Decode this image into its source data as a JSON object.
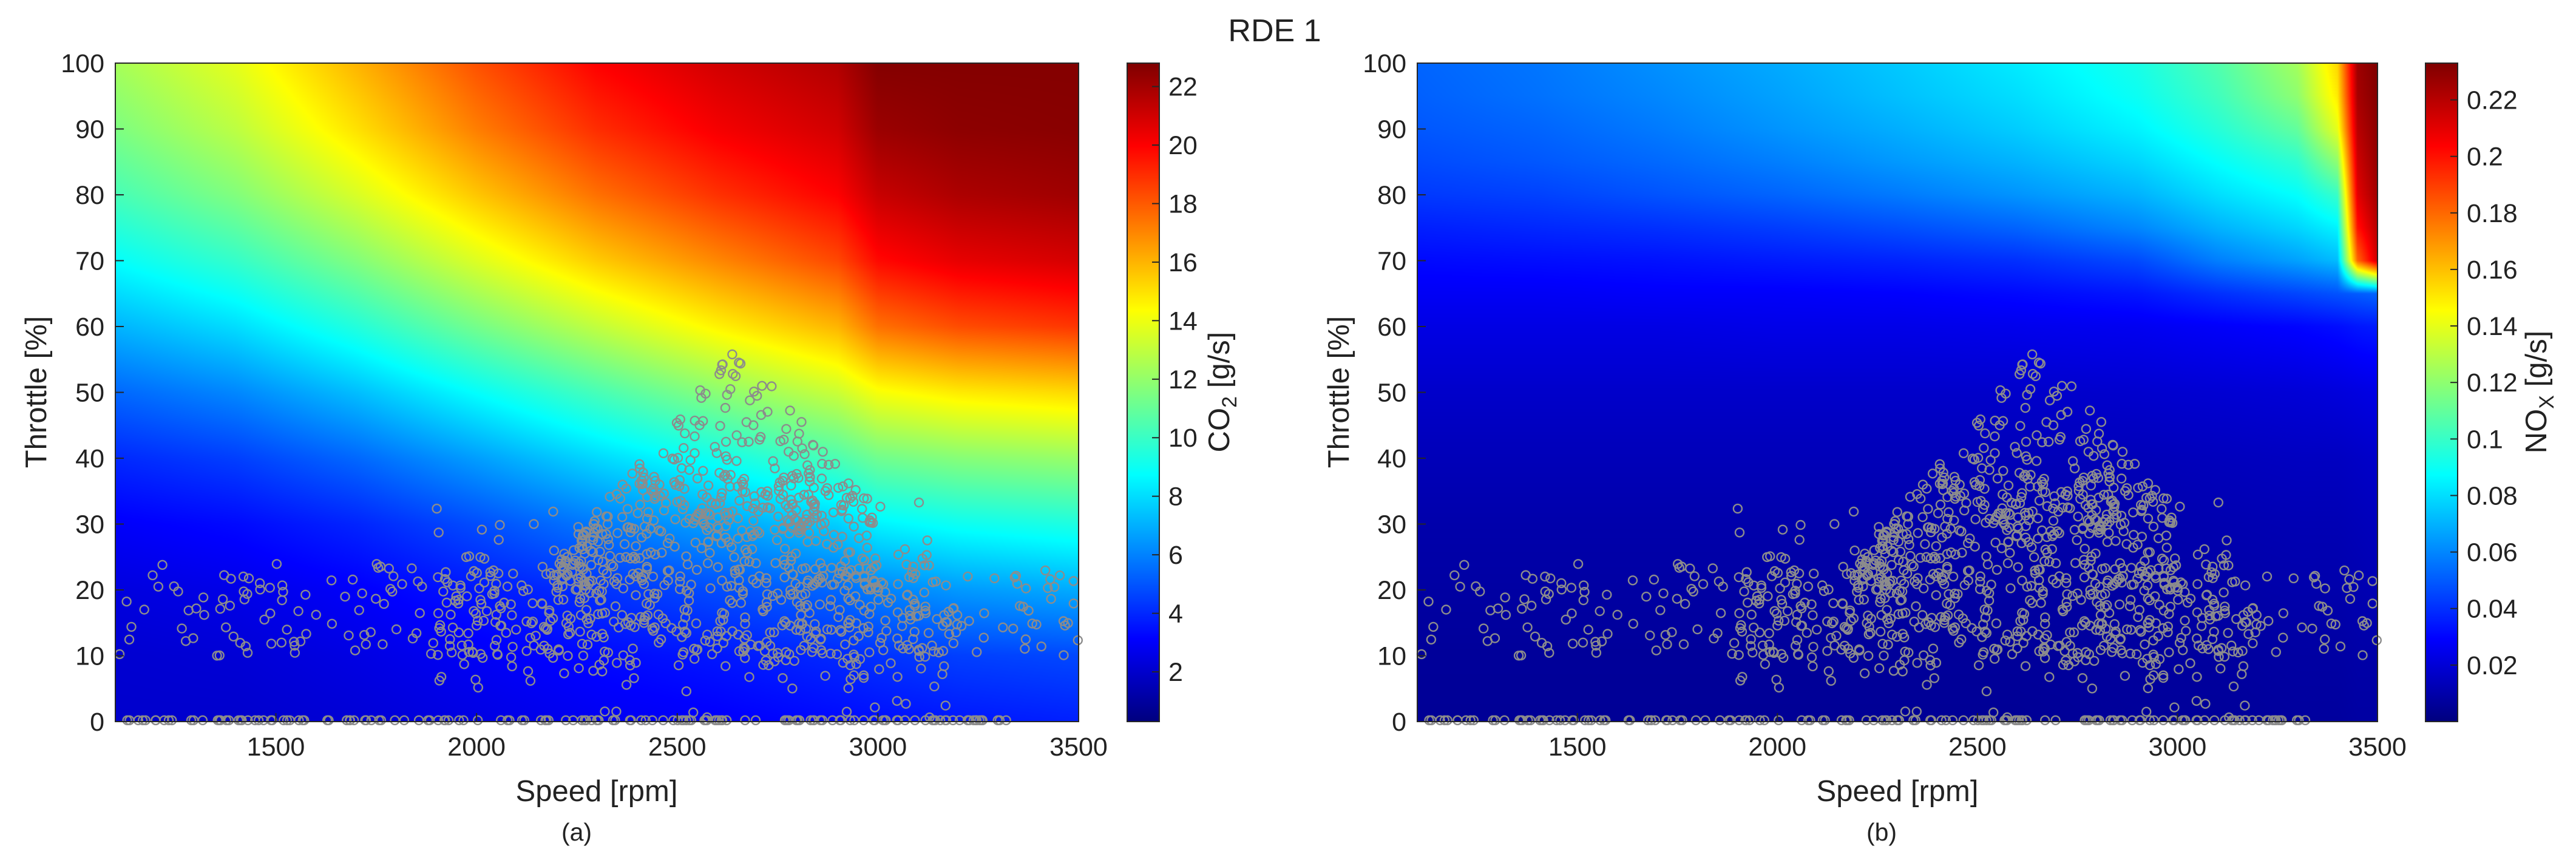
{
  "figure": {
    "title": "RDE 1",
    "colors": {
      "scatter_marker": "#8c8c8c",
      "axis": "#262626"
    },
    "panels": [
      {
        "tag": "(a)",
        "xlabel": "Speed [rpm]",
        "ylabel": "Throttle [%]",
        "colorbar_label": "CO",
        "colorbar_sub": "2",
        "colorbar_unit": " [g/s]"
      },
      {
        "tag": "(b)",
        "xlabel": "Speed [rpm]",
        "ylabel": "Throttle [%]",
        "colorbar_label": "NO",
        "colorbar_sub": "X",
        "colorbar_unit": " [g/s]"
      }
    ]
  },
  "chart_data": [
    {
      "type": "heatmap",
      "title": "",
      "xlabel": "Speed [rpm]",
      "ylabel": "Throttle [%]",
      "xlim": [
        1100,
        3500
      ],
      "ylim": [
        0,
        100
      ],
      "x_ticks": [
        1500,
        2000,
        2500,
        3000,
        3500
      ],
      "y_ticks": [
        0,
        10,
        20,
        30,
        40,
        50,
        60,
        70,
        80,
        90,
        100
      ],
      "colorbar": {
        "label": "CO2 [g/s]",
        "min": 0.3,
        "max": 22.8,
        "ticks": [
          2,
          4,
          6,
          8,
          10,
          12,
          14,
          16,
          18,
          20,
          22
        ],
        "colormap": "jet"
      },
      "surface": {
        "x": [
          1100,
          1400,
          1700,
          2000,
          2300,
          2600,
          2900,
          3000,
          3200,
          3500
        ],
        "y": [
          0,
          10,
          20,
          30,
          40,
          50,
          60,
          70,
          80,
          90,
          100
        ],
        "z": [
          [
            2.0,
            2.0,
            2.2,
            2.5,
            2.8,
            3.0,
            3.3,
            3.4,
            3.6,
            3.8
          ],
          [
            2.1,
            2.2,
            2.5,
            2.9,
            3.3,
            3.6,
            4.0,
            4.2,
            4.5,
            4.7
          ],
          [
            2.4,
            2.6,
            3.0,
            3.6,
            4.2,
            4.8,
            5.4,
            6.0,
            6.5,
            6.9
          ],
          [
            3.0,
            3.3,
            3.9,
            4.8,
            5.8,
            6.7,
            7.7,
            8.5,
            9.0,
            9.4
          ],
          [
            4.0,
            4.5,
            5.4,
            6.6,
            7.9,
            9.1,
            10.4,
            11.2,
            11.7,
            12.1
          ],
          [
            5.4,
            6.1,
            7.3,
            8.8,
            10.3,
            11.8,
            13.2,
            14.2,
            14.8,
            15.2
          ],
          [
            7.1,
            8.0,
            9.5,
            11.3,
            13.0,
            14.6,
            16.0,
            17.5,
            18.3,
            18.8
          ],
          [
            8.8,
            9.9,
            11.6,
            13.6,
            15.5,
            17.0,
            18.4,
            19.8,
            20.5,
            20.9
          ],
          [
            10.3,
            11.6,
            13.5,
            15.6,
            17.5,
            18.9,
            20.0,
            21.2,
            21.8,
            22.1
          ],
          [
            11.5,
            12.9,
            15.0,
            17.2,
            19.0,
            20.2,
            21.0,
            22.2,
            22.5,
            22.6
          ],
          [
            12.4,
            13.8,
            16.0,
            18.2,
            20.0,
            21.0,
            21.7,
            22.7,
            22.7,
            22.7
          ]
        ]
      },
      "operating_points": {
        "marker": "open circle",
        "color": "#8c8c8c",
        "shared_with_panel_b": true
      }
    },
    {
      "type": "heatmap",
      "title": "",
      "xlabel": "Speed [rpm]",
      "ylabel": "Throttle [%]",
      "xlim": [
        1100,
        3500
      ],
      "ylim": [
        0,
        100
      ],
      "x_ticks": [
        1500,
        2000,
        2500,
        3000,
        3500
      ],
      "y_ticks": [
        0,
        10,
        20,
        30,
        40,
        50,
        60,
        70,
        80,
        90,
        100
      ],
      "colorbar": {
        "label": "NOX [g/s]",
        "min": 0.0,
        "max": 0.233,
        "ticks": [
          0.02,
          0.04,
          0.06,
          0.08,
          0.1,
          0.12,
          0.14,
          0.16,
          0.18,
          0.2,
          0.22
        ],
        "colormap": "jet"
      },
      "surface": {
        "x": [
          1100,
          1400,
          1700,
          2000,
          2300,
          2600,
          2900,
          3100,
          3300,
          3400,
          3450,
          3500
        ],
        "y": [
          0,
          10,
          20,
          30,
          40,
          50,
          60,
          65,
          70,
          75,
          80,
          85,
          90,
          95,
          100
        ],
        "z": [
          [
            0.005,
            0.005,
            0.005,
            0.005,
            0.005,
            0.005,
            0.006,
            0.006,
            0.007,
            0.007,
            0.008,
            0.008
          ],
          [
            0.006,
            0.006,
            0.006,
            0.006,
            0.006,
            0.006,
            0.007,
            0.007,
            0.008,
            0.008,
            0.009,
            0.009
          ],
          [
            0.008,
            0.008,
            0.008,
            0.008,
            0.008,
            0.008,
            0.008,
            0.009,
            0.01,
            0.01,
            0.011,
            0.012
          ],
          [
            0.01,
            0.01,
            0.01,
            0.01,
            0.01,
            0.01,
            0.01,
            0.011,
            0.012,
            0.012,
            0.013,
            0.014
          ],
          [
            0.013,
            0.013,
            0.013,
            0.013,
            0.013,
            0.013,
            0.013,
            0.014,
            0.015,
            0.015,
            0.016,
            0.017
          ],
          [
            0.017,
            0.017,
            0.017,
            0.017,
            0.017,
            0.017,
            0.018,
            0.019,
            0.02,
            0.021,
            0.022,
            0.023
          ],
          [
            0.023,
            0.023,
            0.023,
            0.024,
            0.024,
            0.025,
            0.026,
            0.028,
            0.03,
            0.032,
            0.034,
            0.035
          ],
          [
            0.027,
            0.027,
            0.028,
            0.028,
            0.029,
            0.031,
            0.034,
            0.04,
            0.045,
            0.048,
            0.05,
            0.052
          ],
          [
            0.031,
            0.032,
            0.033,
            0.035,
            0.037,
            0.04,
            0.046,
            0.058,
            0.066,
            0.072,
            0.18,
            0.215
          ],
          [
            0.036,
            0.038,
            0.04,
            0.043,
            0.047,
            0.052,
            0.06,
            0.07,
            0.078,
            0.085,
            0.2,
            0.22
          ],
          [
            0.042,
            0.044,
            0.048,
            0.052,
            0.057,
            0.063,
            0.07,
            0.08,
            0.088,
            0.1,
            0.21,
            0.225
          ],
          [
            0.046,
            0.049,
            0.053,
            0.058,
            0.064,
            0.07,
            0.078,
            0.088,
            0.098,
            0.12,
            0.215,
            0.228
          ],
          [
            0.049,
            0.052,
            0.057,
            0.063,
            0.069,
            0.076,
            0.085,
            0.096,
            0.11,
            0.14,
            0.22,
            0.23
          ],
          [
            0.051,
            0.055,
            0.06,
            0.066,
            0.073,
            0.08,
            0.09,
            0.102,
            0.12,
            0.15,
            0.224,
            0.232
          ],
          [
            0.052,
            0.056,
            0.062,
            0.068,
            0.075,
            0.083,
            0.093,
            0.106,
            0.125,
            0.155,
            0.226,
            0.233
          ]
        ]
      },
      "operating_points": {
        "marker": "open circle",
        "color": "#8c8c8c",
        "shared_with_panel_a": true
      }
    }
  ]
}
